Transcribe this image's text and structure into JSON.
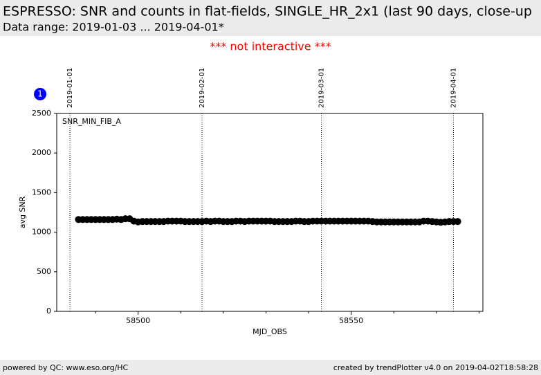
{
  "header": {
    "title": "ESPRESSO: SNR and counts in flat-fields, SINGLE_HR_2x1 (last 90 days, close-up",
    "subtitle": "Data range: 2019-01-03 ... 2019-04-01*"
  },
  "notice": "*** not interactive ***",
  "badge": "1",
  "footer": {
    "left": "powered by QC: www.eso.org/HC",
    "right": "created by trendPlotter v4.0 on 2019-04-02T18:58:28"
  },
  "chart_data": {
    "type": "scatter",
    "panel_label": "SNR_MIN_FIB_A",
    "xlabel": "MJD_OBS",
    "ylabel": "avg SNR",
    "color": "#000000",
    "xlim": [
      58480.9,
      58580.9
    ],
    "ylim": [
      0,
      2500
    ],
    "xticks": [
      58500,
      58550
    ],
    "xminorticks": [
      58490,
      58510,
      58520,
      58530,
      58540,
      58560,
      58570,
      58580
    ],
    "yticks": [
      0,
      500,
      1000,
      1500,
      2000,
      2500
    ],
    "vlines": [
      {
        "value": 58484,
        "label": "2019-01-01"
      },
      {
        "value": 58515,
        "label": "2019-02-01"
      },
      {
        "value": 58543,
        "label": "2019-03-01"
      },
      {
        "value": 58574,
        "label": "2019-04-01"
      }
    ],
    "x": [
      58486,
      58487,
      58488,
      58489,
      58490,
      58491,
      58492,
      58493,
      58494,
      58495,
      58496,
      58497,
      58498,
      58499,
      58500,
      58501,
      58502,
      58503,
      58504,
      58505,
      58506,
      58507,
      58508,
      58509,
      58510,
      58511,
      58512,
      58513,
      58514,
      58515,
      58516,
      58517,
      58518,
      58519,
      58520,
      58521,
      58522,
      58523,
      58524,
      58525,
      58526,
      58527,
      58528,
      58529,
      58530,
      58531,
      58532,
      58533,
      58534,
      58535,
      58536,
      58537,
      58538,
      58539,
      58540,
      58541,
      58542,
      58543,
      58544,
      58545,
      58546,
      58547,
      58548,
      58549,
      58550,
      58551,
      58552,
      58553,
      58554,
      58555,
      58556,
      58557,
      58558,
      58559,
      58560,
      58561,
      58562,
      58563,
      58564,
      58565,
      58566,
      58567,
      58568,
      58569,
      58570,
      58571,
      58572,
      58573,
      58574,
      58575
    ],
    "values": [
      1160,
      1160,
      1160,
      1160,
      1160,
      1160,
      1160,
      1160,
      1160,
      1165,
      1160,
      1170,
      1170,
      1140,
      1130,
      1135,
      1135,
      1135,
      1135,
      1135,
      1135,
      1140,
      1140,
      1140,
      1140,
      1135,
      1135,
      1135,
      1135,
      1135,
      1140,
      1135,
      1140,
      1140,
      1135,
      1135,
      1135,
      1140,
      1140,
      1135,
      1140,
      1140,
      1140,
      1140,
      1140,
      1140,
      1135,
      1135,
      1135,
      1135,
      1135,
      1140,
      1140,
      1135,
      1135,
      1140,
      1140,
      1140,
      1140,
      1140,
      1140,
      1140,
      1140,
      1140,
      1140,
      1140,
      1140,
      1140,
      1140,
      1135,
      1130,
      1130,
      1130,
      1130,
      1130,
      1130,
      1130,
      1130,
      1130,
      1130,
      1130,
      1140,
      1140,
      1135,
      1130,
      1125,
      1130,
      1135,
      1135,
      1135
    ]
  }
}
